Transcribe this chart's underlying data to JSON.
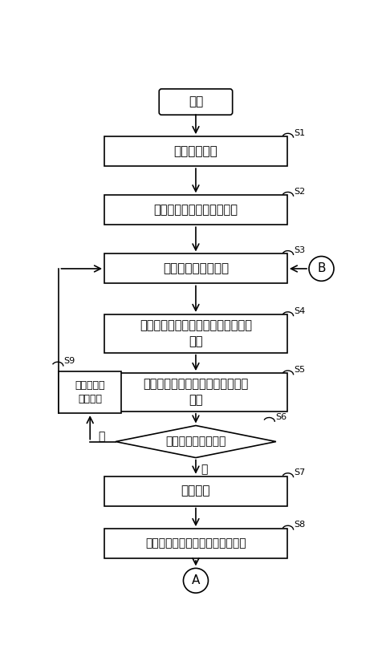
{
  "bg_color": "#ffffff",
  "line_color": "#000000",
  "text_color": "#000000",
  "nodes": {
    "start_text": "开始",
    "s1_text": "获取输入矩阵",
    "s2_text": "获取第一层模型的配置参数",
    "s3_text": "获取一个系数子矩阵",
    "s4_text": "系数子矩阵与输入矩阵进行点乘求和\n计算",
    "s5_text": "将多个系数矩阵对应的部分和矩阵\n累加",
    "s6_text": "当前特征计算完毕？",
    "s9_text": "获取下一个\n系数矩阵",
    "s7_text": "激活池化",
    "s8_text": "将计算结果写入到第二数据缓存区",
    "end_text": "A",
    "B_text": "B",
    "yes_text": "是",
    "no_text": "否"
  },
  "labels": {
    "S1": "S1",
    "S2": "S2",
    "S3": "S3",
    "S4": "S4",
    "S5": "S5",
    "S6": "S6",
    "S7": "S7",
    "S8": "S8",
    "S9": "S9"
  }
}
